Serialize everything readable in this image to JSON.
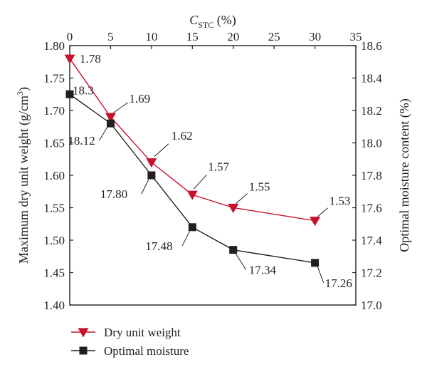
{
  "chart_data": {
    "type": "line",
    "x_axis": {
      "label_main": "C",
      "label_sub": "STC",
      "label_unit": " (%)",
      "range": [
        0,
        35
      ],
      "ticks": [
        0,
        5,
        10,
        15,
        20,
        25,
        30,
        35
      ],
      "position": "top"
    },
    "y_left": {
      "label": "Maximum dry unit weight (g/cm",
      "label_sup": "3",
      "label_end": ")",
      "range": [
        1.4,
        1.8
      ],
      "ticks": [
        "1.40",
        "1.45",
        "1.50",
        "1.55",
        "1.60",
        "1.65",
        "1.70",
        "1.75",
        "1.80"
      ]
    },
    "y_right": {
      "label": "Optimal moisture content (%)",
      "range": [
        17.0,
        18.6
      ],
      "ticks": [
        "17.0",
        "17.2",
        "17.4",
        "17.6",
        "17.8",
        "18.0",
        "18.2",
        "18.4",
        "18.6"
      ]
    },
    "grid": false,
    "legend_position": "bottom-left",
    "series": [
      {
        "name": "Dry unit weight",
        "axis": "left",
        "color": "#c8102e",
        "marker": "triangle-down",
        "x": [
          0,
          5,
          10,
          15,
          20,
          30
        ],
        "y": [
          1.78,
          1.69,
          1.62,
          1.57,
          1.55,
          1.53
        ],
        "labels": [
          "1.78",
          "1.69",
          "1.62",
          "1.57",
          "1.55",
          "1.53"
        ]
      },
      {
        "name": "Optimal moisture",
        "axis": "right",
        "color": "#231f20",
        "marker": "square",
        "x": [
          0,
          5,
          10,
          15,
          20,
          30
        ],
        "y": [
          18.3,
          18.12,
          17.8,
          17.48,
          17.34,
          17.26
        ],
        "labels": [
          "18.3",
          "18.12",
          "17.80",
          "17.48",
          "17.34",
          "17.26"
        ]
      }
    ]
  }
}
